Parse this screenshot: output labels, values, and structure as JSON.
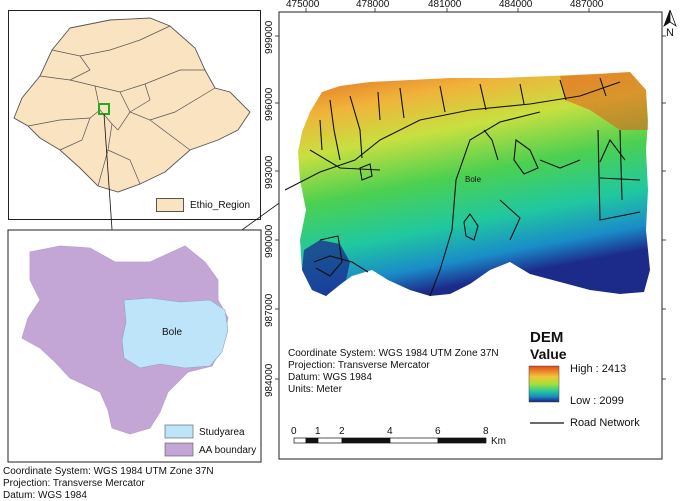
{
  "map_top": {
    "legend_label": "Ethio_Region",
    "colors": {
      "fill": "#fae3c0",
      "stroke": "#555555",
      "highlight": "#22aa22"
    }
  },
  "map_bottom": {
    "area_label": "Bole",
    "legend": [
      {
        "label": "Studyarea",
        "color": "#bde4f8"
      },
      {
        "label": "AA boundary",
        "color": "#c3a6d6"
      }
    ]
  },
  "map_info_bottom_left": {
    "lines": [
      "Coordinate System: WGS 1984 UTM Zone 37N",
      "Projection: Transverse Mercator",
      "Datum: WGS 1984"
    ]
  },
  "dem_map": {
    "x_ticks": [
      "475000",
      "478000",
      "481000",
      "484000",
      "487000"
    ],
    "y_ticks": [
      "999000",
      "996000",
      "993000",
      "990000",
      "987000",
      "984000"
    ],
    "place_label": "Bole",
    "north": "N",
    "info_lines": [
      "Coordinate System: WGS 1984 UTM Zone 37N",
      "Projection: Transverse Mercator",
      "Datum: WGS 1984",
      "Units: Meter"
    ],
    "legend": {
      "title_line1": "DEM",
      "title_line2": "Value",
      "high": "High : 2413",
      "low": "Low : 2099",
      "road": "Road Network"
    },
    "scale": {
      "labels": [
        "0",
        "1",
        "2",
        "4",
        "6",
        "8"
      ],
      "unit": "Km"
    }
  }
}
